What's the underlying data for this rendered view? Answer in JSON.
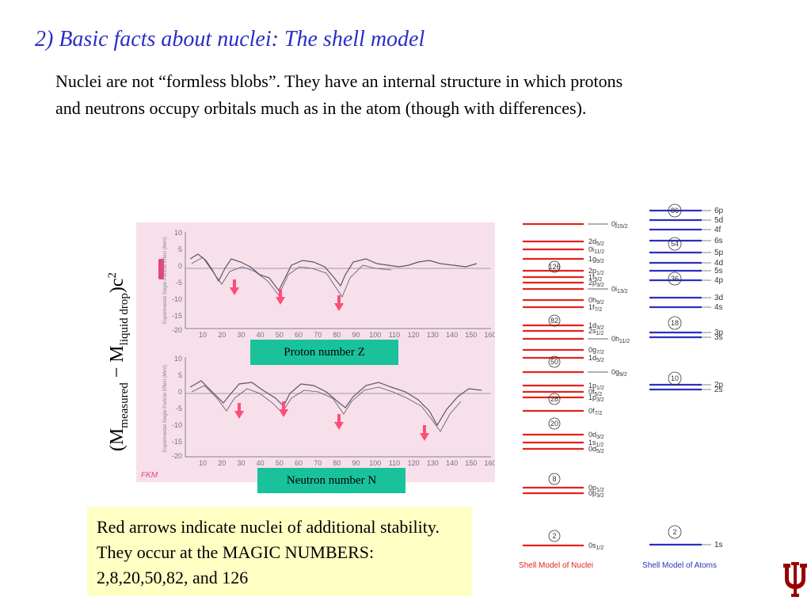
{
  "title": "2) Basic facts about nuclei: The shell model",
  "intro_text": "Nuclei are not “formless blobs”. They have an internal structure in which protons and neutrons occupy orbitals  much as in the atom (though with differences).",
  "y_axis": {
    "open": "(M",
    "sub1": "measured",
    "minus": " − M",
    "sub2": "liquid drop",
    "close": ")c",
    "sup": "2"
  },
  "plot": {
    "x_ticks": [
      "10",
      "20",
      "30",
      "40",
      "50",
      "60",
      "70",
      "80",
      "90",
      "100",
      "110",
      "120",
      "130",
      "140",
      "150",
      "160"
    ],
    "y_ticks": [
      "10",
      "5",
      "0",
      "-5",
      "-10",
      "-15",
      "-20"
    ],
    "upper_ylabel": "Experimental Single-Particle Effect (MeV)",
    "lower_ylabel": "Experimental Single-Particle Effect (MeV)",
    "signature": "FKM",
    "proton_label": "Proton number Z",
    "neutron_label": "Neutron number N"
  },
  "shell_model": {
    "nuclei_caption": "Shell Model of Nuclei",
    "atoms_caption": "Shell Model of Atoms",
    "nuclei_magic": [
      "2",
      "8",
      "20",
      "28",
      "50",
      "82",
      "126"
    ],
    "atoms_magic": [
      "2",
      "10",
      "18",
      "36",
      "54",
      "86"
    ],
    "nuclei_levels": [
      {
        "n": "0",
        "l": "s",
        "j": "1/2"
      },
      {
        "n": "0",
        "l": "p",
        "j": "3/2"
      },
      {
        "n": "0",
        "l": "p",
        "j": "1/2"
      },
      {
        "n": "0",
        "l": "d",
        "j": "5/2"
      },
      {
        "n": "1",
        "l": "s",
        "j": "1/2"
      },
      {
        "n": "0",
        "l": "d",
        "j": "3/2"
      },
      {
        "n": "0",
        "l": "f",
        "j": "7/2"
      },
      {
        "n": "1",
        "l": "p",
        "j": "3/2"
      },
      {
        "n": "0",
        "l": "f",
        "j": "5/2"
      },
      {
        "n": "1",
        "l": "p",
        "j": "1/2"
      },
      {
        "n": "0",
        "l": "g",
        "j": "9/2",
        "side": true
      },
      {
        "n": "1",
        "l": "d",
        "j": "5/2"
      },
      {
        "n": "0",
        "l": "g",
        "j": "7/2"
      },
      {
        "n": "0",
        "l": "h",
        "j": "11/2",
        "side": true
      },
      {
        "n": "2",
        "l": "s",
        "j": "1/2"
      },
      {
        "n": "1",
        "l": "d",
        "j": "3/2"
      },
      {
        "n": "1",
        "l": "f",
        "j": "7/2"
      },
      {
        "n": "0",
        "l": "h",
        "j": "9/2"
      },
      {
        "n": "0",
        "l": "i",
        "j": "13/2",
        "side": true
      },
      {
        "n": "2",
        "l": "p",
        "j": "3/2"
      },
      {
        "n": "1",
        "l": "f",
        "j": "5/2"
      },
      {
        "n": "2",
        "l": "p",
        "j": "1/2"
      },
      {
        "n": "1",
        "l": "g",
        "j": "9/2"
      },
      {
        "n": "0",
        "l": "i",
        "j": "11/2"
      },
      {
        "n": "2",
        "l": "d",
        "j": "5/2"
      },
      {
        "n": "0",
        "l": "j",
        "j": "15/2",
        "side": true
      }
    ],
    "atom_levels": [
      "1s",
      "2s",
      "2p",
      "3s",
      "3p",
      "4s",
      "3d",
      "4p",
      "5s",
      "4d",
      "5p",
      "6s",
      "4f",
      "5d",
      "6p"
    ]
  },
  "note": "Red arrows indicate nuclei of additional stability. They occur at the MAGIC NUMBERS: 2,8,20,50,82, and 126",
  "colors": {
    "title": "#2a2dc7",
    "nuclei_line": "#e2231a",
    "atoms_line": "#2b2fbf",
    "tag_bg": "#19c29a",
    "note_bg": "#ffffc4",
    "logo": "#990000"
  }
}
